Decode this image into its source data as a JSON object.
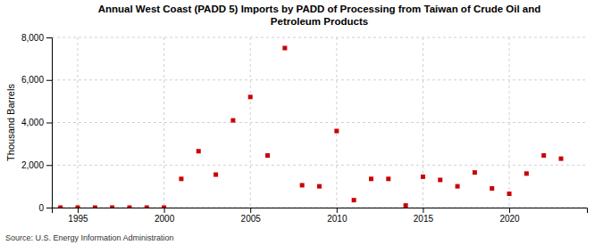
{
  "chart_data": {
    "type": "scatter",
    "title": "Annual West Coast (PADD 5) Imports by PADD of Processing from Taiwan of Crude Oil and\nPetroleum Products",
    "y_label": "Thousand Barrels",
    "annotation": "Source: U.S. Energy Information Administration",
    "color": "#cc0000",
    "marker": "square",
    "grid": true,
    "x": [
      1994,
      1995,
      1996,
      1997,
      1998,
      1999,
      2000,
      2001,
      2002,
      2003,
      2004,
      2005,
      2006,
      2007,
      2008,
      2009,
      2010,
      2011,
      2012,
      2013,
      2014,
      2015,
      2016,
      2017,
      2018,
      2019,
      2020,
      2021,
      2022,
      2023
    ],
    "values": [
      0,
      0,
      0,
      0,
      0,
      0,
      0,
      1350,
      2650,
      1550,
      4100,
      5200,
      2450,
      7500,
      1050,
      1000,
      3600,
      350,
      1350,
      1350,
      100,
      1450,
      1300,
      1000,
      1650,
      900,
      650,
      1600,
      2450,
      2300
    ],
    "xlim": [
      1993.5,
      2024.5
    ],
    "xticks": [
      1995,
      2000,
      2005,
      2010,
      2015,
      2020
    ],
    "ylim": [
      0,
      8000
    ],
    "yticks": [
      0,
      {
        "value": 2000,
        "label": "2,000"
      },
      {
        "value": 4000,
        "label": "4,000"
      },
      {
        "value": 6000,
        "label": "6,000"
      },
      {
        "value": 8000,
        "label": "8,000"
      }
    ]
  }
}
